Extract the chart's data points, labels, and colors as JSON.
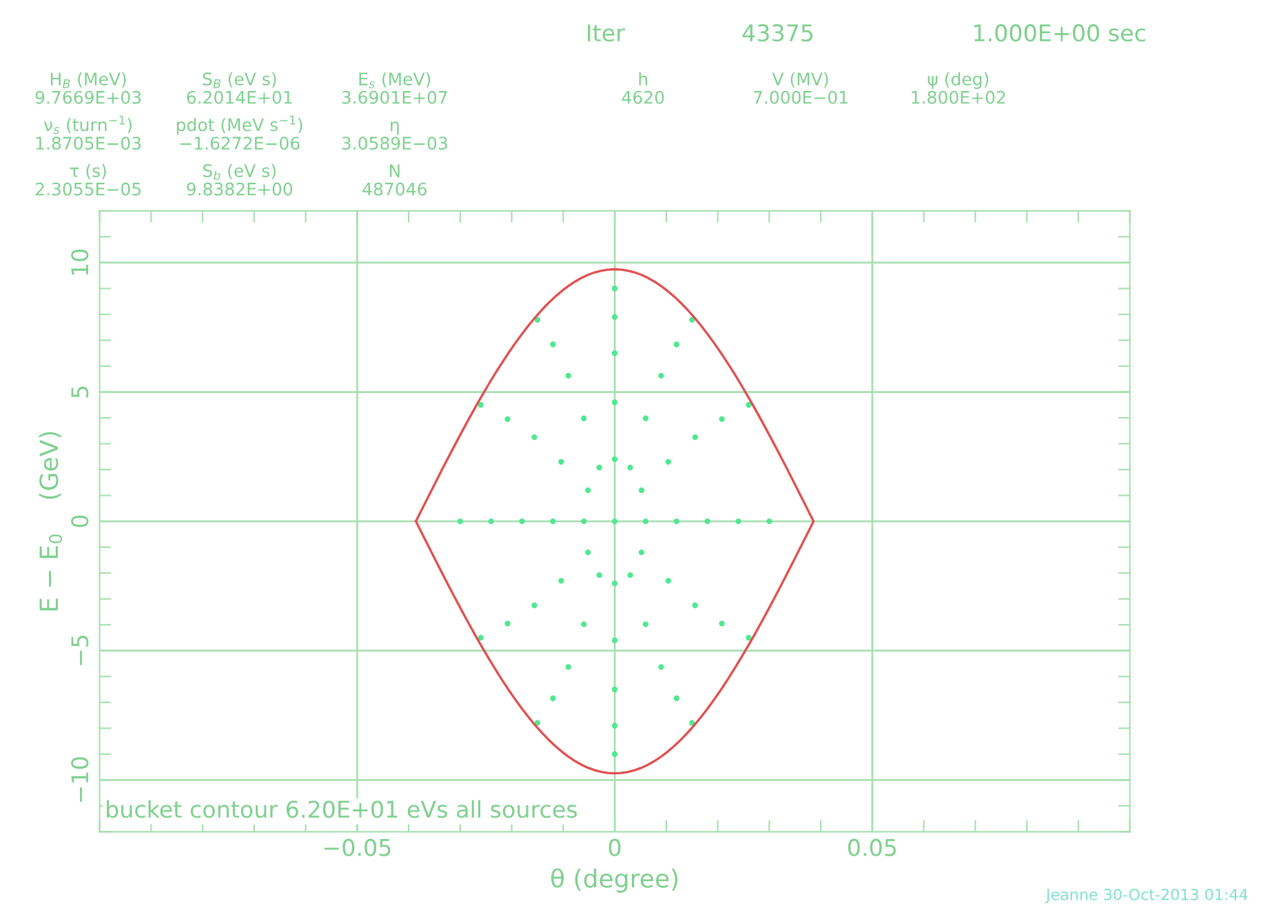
{
  "chart_data": {
    "type": "scatter",
    "xlabel": "θ (degree)",
    "ylabel": "E − E$_{0}$    (GeV)",
    "annotations": [
      "Iter",
      "43375",
      "1.000E+00 sec",
      "H$_{B}$ (MeV)",
      "9.7669E+03",
      "S$_{B}$ (eV s)",
      "6.2014E+01",
      "E$_{s}$ (MeV)",
      "3.6901E+07",
      "h",
      "4620",
      "V (MV)",
      "7.000E−01",
      "ψ (deg)",
      "1.800E+02",
      "ν$_{s}$ (turn$^{−1}$)",
      "1.8705E−03",
      "pdot (MeV s$^{−1}$)",
      "−1.6272E−06",
      "η",
      "3.0589E−03",
      "τ (s)",
      "2.3055E−05",
      "S$_{b}$ (eV s)",
      "9.8382E+00",
      "N",
      "487046",
      "bucket contour 6.20E+01 eVs all sources",
      "Jeanne 30-Oct-2013 01:44"
    ],
    "xlim": [
      -0.1,
      0.1
    ],
    "ylim": [
      -12,
      12
    ],
    "xticks": [
      {
        "value": -0.1,
        "label": null
      },
      {
        "value": -0.09,
        "label": null
      },
      {
        "value": -0.08,
        "label": null
      },
      {
        "value": -0.07,
        "label": null
      },
      {
        "value": -0.06,
        "label": null
      },
      {
        "value": -0.05,
        "label": "−0.05"
      },
      {
        "value": -0.04,
        "label": null
      },
      {
        "value": -0.03,
        "label": null
      },
      {
        "value": -0.02,
        "label": null
      },
      {
        "value": -0.01,
        "label": null
      },
      {
        "value": 0,
        "label": "0"
      },
      {
        "value": 0.01,
        "label": null
      },
      {
        "value": 0.02,
        "label": null
      },
      {
        "value": 0.03,
        "label": null
      },
      {
        "value": 0.04,
        "label": null
      },
      {
        "value": 0.05,
        "label": "0.05"
      },
      {
        "value": 0.06,
        "label": null
      },
      {
        "value": 0.07,
        "label": null
      },
      {
        "value": 0.08,
        "label": null
      },
      {
        "value": 0.09,
        "label": null
      },
      {
        "value": 0.1,
        "label": null
      }
    ],
    "yticks": [
      {
        "value": -12,
        "label": null
      },
      {
        "value": -11,
        "label": null
      },
      {
        "value": -10,
        "label": "−10"
      },
      {
        "value": -9,
        "label": null
      },
      {
        "value": -8,
        "label": null
      },
      {
        "value": -7,
        "label": null
      },
      {
        "value": -6,
        "label": null
      },
      {
        "value": -5,
        "label": "−5"
      },
      {
        "value": -4,
        "label": null
      },
      {
        "value": -3,
        "label": null
      },
      {
        "value": -2,
        "label": null
      },
      {
        "value": -1,
        "label": null
      },
      {
        "value": 0,
        "label": "0"
      },
      {
        "value": 1,
        "label": null
      },
      {
        "value": 2,
        "label": null
      },
      {
        "value": 3,
        "label": null
      },
      {
        "value": 4,
        "label": null
      },
      {
        "value": 5,
        "label": "5"
      },
      {
        "value": 6,
        "label": null
      },
      {
        "value": 7,
        "label": null
      },
      {
        "value": 8,
        "label": null
      },
      {
        "value": 9,
        "label": null
      },
      {
        "value": 10,
        "label": "10"
      },
      {
        "value": 11,
        "label": null
      },
      {
        "value": 12,
        "label": null
      }
    ],
    "grid": true,
    "legend": false,
    "marker": "circle",
    "series": [
      {
        "color": "#50e890",
        "x": [
          0,
          0.006,
          0.0052,
          0.003,
          0,
          -0.003,
          -0.0052,
          -0.006,
          -0.0052,
          -0.003,
          0,
          0.003,
          0.0052,
          0.012,
          0.0104,
          0.006,
          0,
          -0.006,
          -0.0104,
          -0.012,
          -0.0104,
          -0.006,
          0,
          0.006,
          0.0104,
          0.018,
          0.0156,
          0.009,
          0,
          -0.009,
          -0.0156,
          -0.018,
          -0.0156,
          -0.009,
          0,
          0.009,
          0.0156,
          0.024,
          0.0208,
          0.012,
          0,
          -0.012,
          -0.0208,
          -0.024,
          -0.0208,
          -0.012,
          0,
          0.012,
          0.0208,
          0.03,
          0.026,
          0.015,
          0,
          -0.015,
          -0.026,
          -0.03,
          -0.026,
          -0.015,
          0,
          0.015,
          0.026
        ],
        "values": [
          0,
          0,
          1.2,
          2.08,
          2.4,
          2.08,
          1.2,
          0,
          -1.2,
          -2.08,
          -2.4,
          -2.08,
          -1.2,
          0,
          2.3,
          3.98,
          4.6,
          3.98,
          2.3,
          0,
          -2.3,
          -3.98,
          -4.6,
          -3.98,
          -2.3,
          0,
          3.25,
          5.63,
          6.5,
          5.63,
          3.25,
          0,
          -3.25,
          -5.63,
          -6.5,
          -5.63,
          -3.25,
          0,
          3.95,
          6.84,
          7.9,
          6.84,
          3.95,
          0,
          -3.95,
          -6.84,
          -7.9,
          -6.84,
          -3.95,
          0,
          4.5,
          7.79,
          9.0,
          7.79,
          4.5,
          0,
          -4.5,
          -7.79,
          -9.0,
          -7.79,
          -4.5
        ]
      }
    ]
  }
}
